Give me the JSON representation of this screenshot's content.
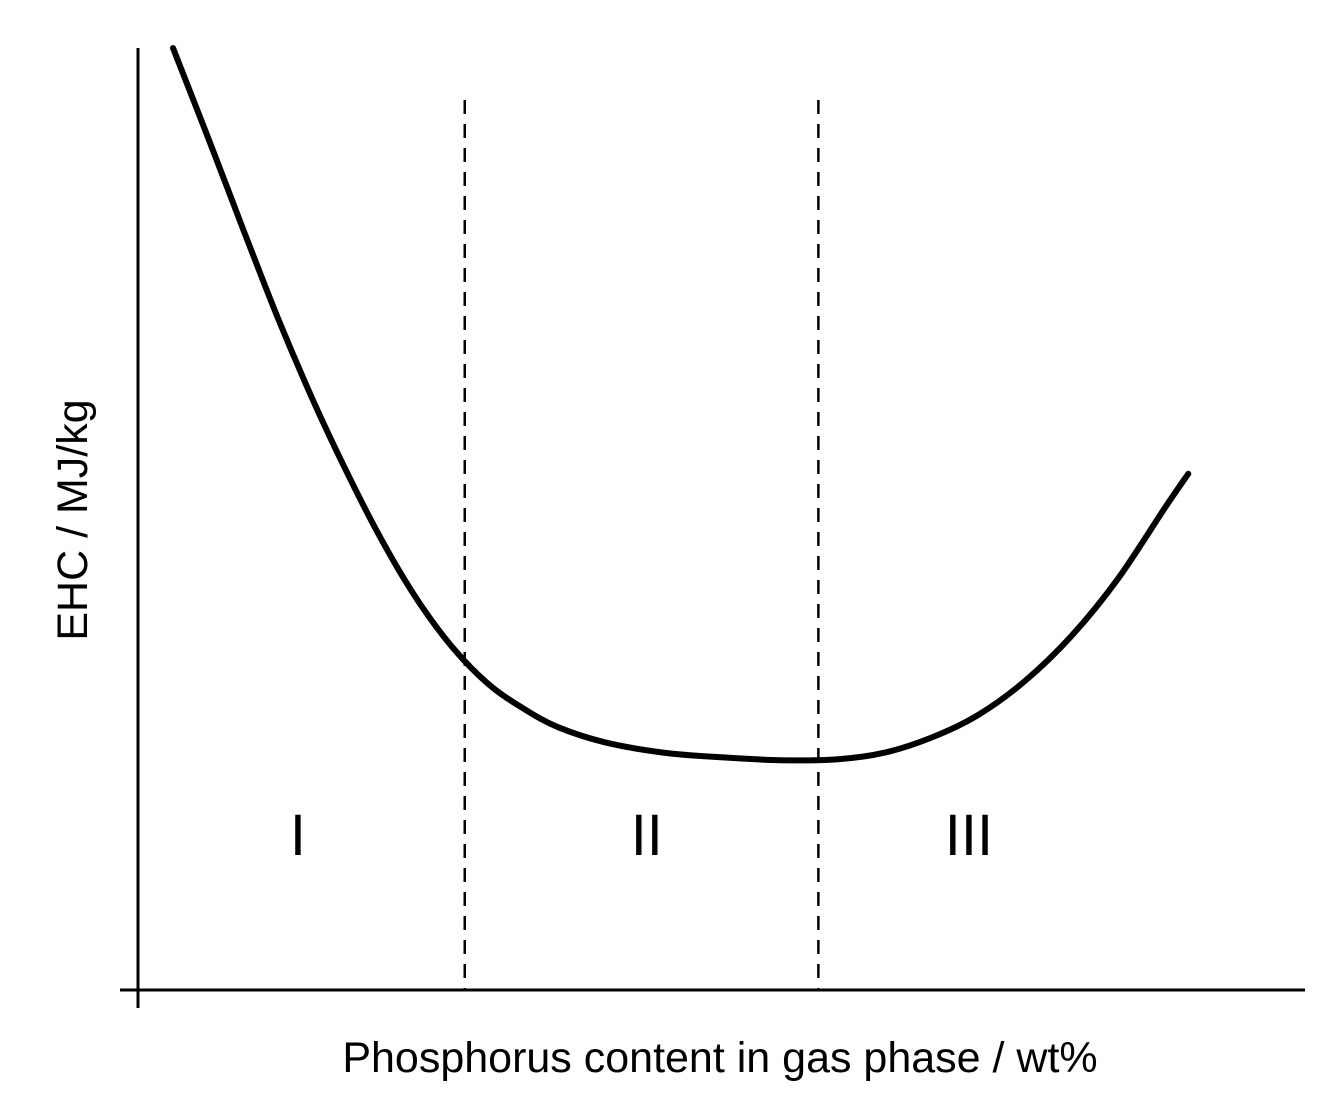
{
  "chart_data": {
    "type": "line",
    "title": "",
    "xlabel": "Phosphorus content in gas phase / wt%",
    "ylabel": "EHC / MJ/kg",
    "xlim": [
      0,
      100
    ],
    "ylim": [
      0,
      100
    ],
    "grid": false,
    "legend": "none",
    "ticks_shown": false,
    "series": [
      {
        "x": [
          3,
          6,
          9,
          12,
          15,
          18,
          21,
          24,
          27,
          30,
          33,
          36,
          40,
          45,
          50,
          55,
          60,
          64,
          68,
          72,
          76,
          80,
          84,
          88,
          90
        ],
        "values": [
          100,
          90.5,
          80.8,
          71.3,
          62.6,
          54.7,
          47.5,
          41.3,
          36.3,
          32.5,
          29.9,
          27.9,
          26.3,
          25.2,
          24.7,
          24.4,
          24.5,
          25.2,
          26.8,
          29.2,
          32.8,
          37.6,
          43.7,
          51.2,
          54.8
        ]
      }
    ],
    "dividers_x": [
      28,
      58.3
    ],
    "regions": [
      {
        "label": "I",
        "x": 13.7
      },
      {
        "label": "II",
        "x": 43.6
      },
      {
        "label": "III",
        "x": 71.2
      }
    ]
  }
}
